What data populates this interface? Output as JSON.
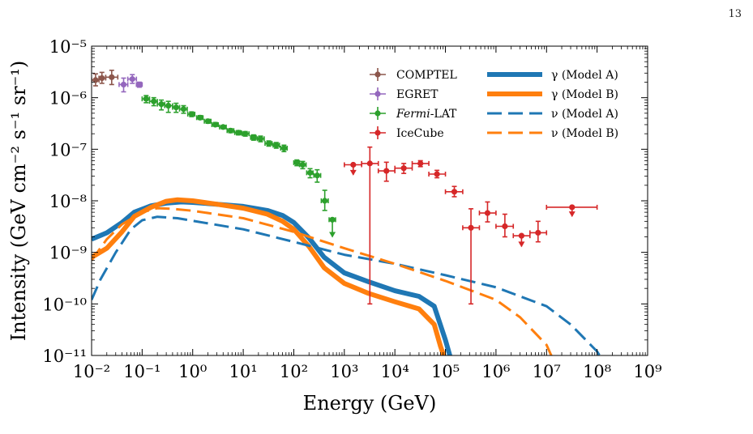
{
  "page_number": "13",
  "chart_data": {
    "type": "scatter",
    "title": "",
    "xlabel": "Energy (GeV)",
    "ylabel": "Intensity (GeV cm⁻² s⁻¹ sr⁻¹)",
    "xscale": "log",
    "yscale": "log",
    "xlim": [
      0.01,
      1000000000
    ],
    "ylim": [
      1e-11,
      1e-05
    ],
    "x_ticks": [
      0.01,
      0.1,
      1,
      10,
      100,
      1000,
      10000,
      100000,
      1000000,
      10000000,
      100000000,
      1000000000
    ],
    "y_ticks": [
      1e-11,
      1e-10,
      1e-09,
      1e-08,
      1e-07,
      1e-06,
      1e-05
    ],
    "grid": false,
    "legend_placement": "top-right",
    "colors": {
      "blue": "#1f77b4",
      "orange": "#ff7f0e",
      "brown": "#8c564b",
      "purple": "#9467bd",
      "green": "#2ca02c",
      "red": "#d62728"
    },
    "data_series": [
      {
        "name": "COMPTEL",
        "color": "#8c564b",
        "marker": "circle",
        "points": [
          {
            "x": 0.012,
            "y": 2.2e-06,
            "xlo": 0.01,
            "xhi": 0.014,
            "ylo": 1.7e-06,
            "yhi": 2.9e-06
          },
          {
            "x": 0.016,
            "y": 2.4e-06,
            "xlo": 0.014,
            "xhi": 0.019,
            "ylo": 1.9e-06,
            "yhi": 3.1e-06
          },
          {
            "x": 0.025,
            "y": 2.5e-06,
            "xlo": 0.019,
            "xhi": 0.033,
            "ylo": 1.8e-06,
            "yhi": 3.4e-06
          }
        ]
      },
      {
        "name": "EGRET",
        "color": "#9467bd",
        "marker": "circle",
        "points": [
          {
            "x": 0.043,
            "y": 1.8e-06,
            "xlo": 0.035,
            "xhi": 0.052,
            "ylo": 1.3e-06,
            "yhi": 2.4e-06
          },
          {
            "x": 0.064,
            "y": 2.3e-06,
            "xlo": 0.052,
            "xhi": 0.077,
            "ylo": 1.9e-06,
            "yhi": 2.8e-06
          },
          {
            "x": 0.088,
            "y": 1.8e-06,
            "xlo": 0.077,
            "xhi": 0.1,
            "ylo": 1.6e-06,
            "yhi": 2e-06
          }
        ]
      },
      {
        "name": "Fermi-LAT",
        "color": "#2ca02c",
        "marker": "circle",
        "points": [
          {
            "x": 0.12,
            "y": 9.5e-07,
            "xlo": 0.1,
            "xhi": 0.14,
            "ylo": 8e-07,
            "yhi": 1.1e-06
          },
          {
            "x": 0.17,
            "y": 8.5e-07,
            "xlo": 0.14,
            "xhi": 0.2,
            "ylo": 7e-07,
            "yhi": 1e-06
          },
          {
            "x": 0.24,
            "y": 7.5e-07,
            "xlo": 0.2,
            "xhi": 0.28,
            "ylo": 5.8e-07,
            "yhi": 9e-07
          },
          {
            "x": 0.33,
            "y": 7e-07,
            "xlo": 0.28,
            "xhi": 0.4,
            "ylo": 5.2e-07,
            "yhi": 8.5e-07
          },
          {
            "x": 0.47,
            "y": 6.5e-07,
            "xlo": 0.4,
            "xhi": 0.55,
            "ylo": 5.2e-07,
            "yhi": 7.8e-07
          },
          {
            "x": 0.66,
            "y": 6e-07,
            "xlo": 0.55,
            "xhi": 0.78,
            "ylo": 5e-07,
            "yhi": 7e-07
          },
          {
            "x": 0.95,
            "y": 4.8e-07,
            "xlo": 0.8,
            "xhi": 1.1,
            "ylo": 4.3e-07,
            "yhi": 5.3e-07
          },
          {
            "x": 1.4,
            "y": 4.1e-07,
            "xlo": 1.2,
            "xhi": 1.6,
            "ylo": 3.8e-07,
            "yhi": 4.5e-07
          },
          {
            "x": 2.0,
            "y": 3.5e-07,
            "xlo": 1.7,
            "xhi": 2.3,
            "ylo": 3.2e-07,
            "yhi": 3.8e-07
          },
          {
            "x": 2.8,
            "y": 3e-07,
            "xlo": 2.4,
            "xhi": 3.2,
            "ylo": 2.8e-07,
            "yhi": 3.3e-07
          },
          {
            "x": 4.0,
            "y": 2.7e-07,
            "xlo": 3.4,
            "xhi": 4.6,
            "ylo": 2.5e-07,
            "yhi": 2.9e-07
          },
          {
            "x": 5.6,
            "y": 2.3e-07,
            "xlo": 4.8,
            "xhi": 6.5,
            "ylo": 2.1e-07,
            "yhi": 2.5e-07
          },
          {
            "x": 8.0,
            "y": 2.1e-07,
            "xlo": 6.8,
            "xhi": 9.2,
            "ylo": 1.9e-07,
            "yhi": 2.3e-07
          },
          {
            "x": 11,
            "y": 2e-07,
            "xlo": 9.5,
            "xhi": 13,
            "ylo": 1.8e-07,
            "yhi": 2.2e-07
          },
          {
            "x": 16,
            "y": 1.7e-07,
            "xlo": 14,
            "xhi": 18,
            "ylo": 1.5e-07,
            "yhi": 1.9e-07
          },
          {
            "x": 22,
            "y": 1.6e-07,
            "xlo": 19,
            "xhi": 26,
            "ylo": 1.4e-07,
            "yhi": 1.8e-07
          },
          {
            "x": 32,
            "y": 1.3e-07,
            "xlo": 27,
            "xhi": 37,
            "ylo": 1.15e-07,
            "yhi": 1.45e-07
          },
          {
            "x": 45,
            "y": 1.2e-07,
            "xlo": 39,
            "xhi": 52,
            "ylo": 1.05e-07,
            "yhi": 1.35e-07
          },
          {
            "x": 64,
            "y": 1.05e-07,
            "xlo": 55,
            "xhi": 74,
            "ylo": 9e-08,
            "yhi": 1.2e-07
          },
          {
            "x": 115,
            "y": 5.5e-08,
            "xlo": 100,
            "xhi": 130,
            "ylo": 4.8e-08,
            "yhi": 6.2e-08
          },
          {
            "x": 150,
            "y": 5e-08,
            "xlo": 130,
            "xhi": 175,
            "ylo": 4.2e-08,
            "yhi": 5.8e-08
          },
          {
            "x": 210,
            "y": 3.5e-08,
            "xlo": 180,
            "xhi": 240,
            "ylo": 2.8e-08,
            "yhi": 4.2e-08
          },
          {
            "x": 290,
            "y": 3.1e-08,
            "xlo": 250,
            "xhi": 340,
            "ylo": 2.3e-08,
            "yhi": 4e-08
          },
          {
            "x": 410,
            "y": 1e-08,
            "xlo": 350,
            "xhi": 480,
            "ylo": 6.5e-09,
            "yhi": 1.6e-08
          },
          {
            "x": 580,
            "y": 4.3e-09,
            "xlo": 500,
            "xhi": 670,
            "ylo": 2e-09,
            "yhi": 4.3e-09,
            "upper_limit": true
          }
        ]
      },
      {
        "name": "IceCube",
        "color": "#d62728",
        "marker": "circle",
        "points": [
          {
            "x": 1500,
            "y": 5e-08,
            "xlo": 1000,
            "xhi": 2200,
            "ylo": 3.2e-08,
            "yhi": 5e-08,
            "upper_limit": true
          },
          {
            "x": 3200,
            "y": 5.3e-08,
            "xlo": 2200,
            "xhi": 4700,
            "ylo": 1e-10,
            "yhi": 1.1e-07
          },
          {
            "x": 6800,
            "y": 3.8e-08,
            "xlo": 4700,
            "xhi": 10000,
            "ylo": 2.4e-08,
            "yhi": 5.6e-08
          },
          {
            "x": 15000,
            "y": 4.3e-08,
            "xlo": 10000,
            "xhi": 22000,
            "ylo": 3.4e-08,
            "yhi": 5.3e-08
          },
          {
            "x": 32000,
            "y": 5.3e-08,
            "xlo": 22000,
            "xhi": 47000,
            "ylo": 4.6e-08,
            "yhi": 6e-08
          },
          {
            "x": 68000,
            "y": 3.3e-08,
            "xlo": 47000,
            "xhi": 100000,
            "ylo": 2.8e-08,
            "yhi": 3.9e-08
          },
          {
            "x": 150000,
            "y": 1.5e-08,
            "xlo": 100000,
            "xhi": 220000,
            "ylo": 1.2e-08,
            "yhi": 1.9e-08
          },
          {
            "x": 320000,
            "y": 3e-09,
            "xlo": 220000,
            "xhi": 470000,
            "ylo": 1e-10,
            "yhi": 7e-09
          },
          {
            "x": 680000,
            "y": 5.8e-09,
            "xlo": 470000,
            "xhi": 1000000,
            "ylo": 3.9e-09,
            "yhi": 9.5e-09
          },
          {
            "x": 1500000,
            "y": 3.2e-09,
            "xlo": 1000000,
            "xhi": 2200000,
            "ylo": 2e-09,
            "yhi": 5.5e-09
          },
          {
            "x": 3200000,
            "y": 2.1e-09,
            "xlo": 2200000,
            "xhi": 4700000,
            "ylo": 1.3e-09,
            "yhi": 2.1e-09,
            "upper_limit": true
          },
          {
            "x": 6800000,
            "y": 2.4e-09,
            "xlo": 4700000,
            "xhi": 10000000,
            "ylo": 1.6e-09,
            "yhi": 4e-09
          },
          {
            "x": 32000000,
            "y": 7.5e-09,
            "xlo": 10000000,
            "xhi": 100000000,
            "ylo": 5e-09,
            "yhi": 7.5e-09,
            "upper_limit": true
          }
        ]
      }
    ],
    "model_series": [
      {
        "name": "γ (Model A)",
        "color": "#1f77b4",
        "style": "solid",
        "points": [
          [
            0.01,
            1.8e-09
          ],
          [
            0.02,
            2.4e-09
          ],
          [
            0.04,
            3.8e-09
          ],
          [
            0.07,
            6e-09
          ],
          [
            0.15,
            8e-09
          ],
          [
            0.3,
            9e-09
          ],
          [
            0.6,
            9.5e-09
          ],
          [
            1,
            9.3e-09
          ],
          [
            3,
            8.6e-09
          ],
          [
            10,
            7.8e-09
          ],
          [
            30,
            6.5e-09
          ],
          [
            60,
            5.2e-09
          ],
          [
            100,
            3.8e-09
          ],
          [
            200,
            1.9e-09
          ],
          [
            400,
            8e-10
          ],
          [
            1000,
            4e-10
          ],
          [
            3000,
            2.7e-10
          ],
          [
            10000,
            1.8e-10
          ],
          [
            30000,
            1.4e-10
          ],
          [
            60000,
            9e-11
          ],
          [
            100000,
            2e-11
          ],
          [
            130000,
            8e-12
          ]
        ]
      },
      {
        "name": "γ (Model B)",
        "color": "#ff7f0e",
        "style": "solid",
        "points": [
          [
            0.01,
            8e-10
          ],
          [
            0.02,
            1.2e-09
          ],
          [
            0.04,
            2.5e-09
          ],
          [
            0.07,
            5e-09
          ],
          [
            0.15,
            7.5e-09
          ],
          [
            0.3,
            9.8e-09
          ],
          [
            0.5,
            1.05e-08
          ],
          [
            1,
            1e-08
          ],
          [
            3,
            8.6e-09
          ],
          [
            10,
            7.2e-09
          ],
          [
            30,
            5.5e-09
          ],
          [
            60,
            4e-09
          ],
          [
            100,
            2.8e-09
          ],
          [
            200,
            1.3e-09
          ],
          [
            400,
            5e-10
          ],
          [
            1000,
            2.5e-10
          ],
          [
            3000,
            1.6e-10
          ],
          [
            10000,
            1.1e-10
          ],
          [
            30000,
            8e-11
          ],
          [
            60000,
            4e-11
          ],
          [
            80000,
            1.5e-11
          ],
          [
            100000,
            8e-12
          ]
        ]
      },
      {
        "name": "ν (Model A)",
        "color": "#1f77b4",
        "style": "dashed",
        "points": [
          [
            0.01,
            1.2e-10
          ],
          [
            0.015,
            3e-10
          ],
          [
            0.03,
            1e-09
          ],
          [
            0.06,
            2.8e-09
          ],
          [
            0.1,
            4.2e-09
          ],
          [
            0.2,
            4.9e-09
          ],
          [
            0.5,
            4.6e-09
          ],
          [
            1,
            4.1e-09
          ],
          [
            10,
            2.8e-09
          ],
          [
            100,
            1.6e-09
          ],
          [
            1000,
            9e-10
          ],
          [
            10000,
            6e-10
          ],
          [
            100000,
            3.6e-10
          ],
          [
            1000000,
            2.1e-10
          ],
          [
            10000000,
            9e-11
          ],
          [
            30000000,
            4e-11
          ],
          [
            100000000,
            1.2e-11
          ],
          [
            130000000,
            8e-12
          ]
        ]
      },
      {
        "name": "ν (Model B)",
        "color": "#ff7f0e",
        "style": "dashed",
        "points": [
          [
            0.01,
            7e-10
          ],
          [
            0.02,
            1.8e-09
          ],
          [
            0.04,
            3.5e-09
          ],
          [
            0.1,
            6e-09
          ],
          [
            0.2,
            7.2e-09
          ],
          [
            0.4,
            7e-09
          ],
          [
            1,
            6.4e-09
          ],
          [
            10,
            4.6e-09
          ],
          [
            100,
            2.5e-09
          ],
          [
            1000,
            1.2e-09
          ],
          [
            10000,
            6e-10
          ],
          [
            100000,
            2.8e-10
          ],
          [
            1000000,
            1.2e-10
          ],
          [
            3000000,
            5.5e-11
          ],
          [
            10000000,
            1.6e-11
          ],
          [
            13000000,
            9e-12
          ]
        ]
      }
    ]
  }
}
